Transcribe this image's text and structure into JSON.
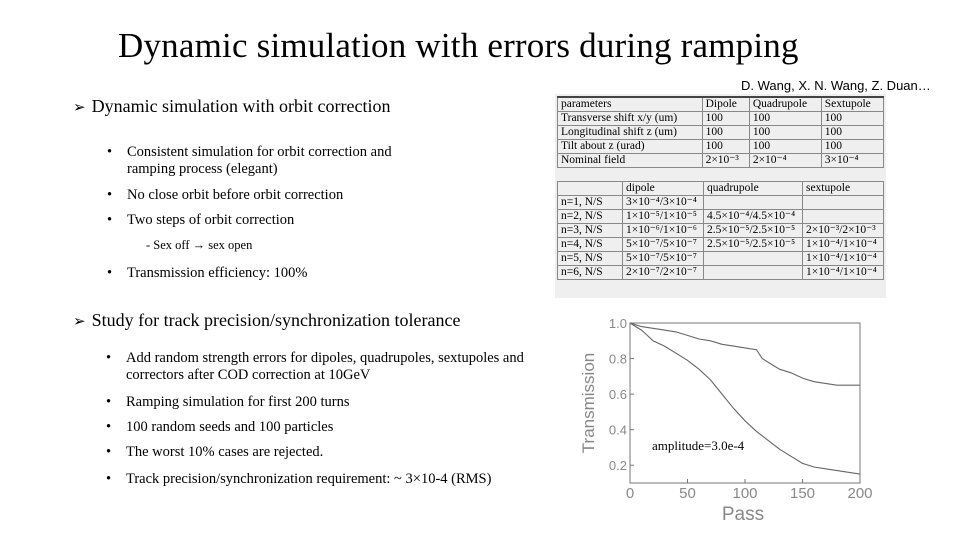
{
  "title": "Dynamic simulation with errors during ramping",
  "authors": "D. Wang, X. N. Wang, Z. Duan…",
  "section1": {
    "heading": "Dynamic simulation with orbit correction",
    "bullets": [
      "Consistent simulation for orbit correction and ramping process (elegant)",
      "No close orbit before orbit correction",
      "Two steps of orbit correction",
      "Transmission efficiency: 100%"
    ],
    "subitem": "- Sex off → sex open"
  },
  "section2": {
    "heading": "Study for track precision/synchronization tolerance",
    "bullets": [
      "Add random strength errors for dipoles, quadrupoles, sextupoles and correctors after COD correction at 10GeV",
      "Ramping simulation for first 200 turns",
      "100 random seeds and 100 particles",
      "The worst 10% cases are rejected.",
      "Track precision/synchronization requirement: ~ 3×10-4 (RMS)"
    ]
  },
  "table1": {
    "header": [
      "parameters",
      "Dipole",
      "Quadrupole",
      "Sextupole"
    ],
    "rows": [
      [
        "Transverse shift x/y (um)",
        "100",
        "100",
        "100"
      ],
      [
        "Longitudinal shift z (um)",
        "100",
        "100",
        "100"
      ],
      [
        "Tilt about z (urad)",
        "100",
        "100",
        "100"
      ],
      [
        "Nominal field",
        "2×10⁻³",
        "2×10⁻⁴",
        "3×10⁻⁴"
      ]
    ]
  },
  "table2": {
    "header": [
      "",
      "dipole",
      "quadrupole",
      "sextupole"
    ],
    "rows": [
      [
        "n=1, N/S",
        "3×10⁻⁴/3×10⁻⁴",
        "",
        ""
      ],
      [
        "n=2, N/S",
        "1×10⁻⁵/1×10⁻⁵",
        "4.5×10⁻⁴/4.5×10⁻⁴",
        ""
      ],
      [
        "n=3, N/S",
        "1×10⁻⁶/1×10⁻⁶",
        "2.5×10⁻⁵/2.5×10⁻⁵",
        "2×10⁻³/2×10⁻³"
      ],
      [
        "n=4, N/S",
        "5×10⁻⁷/5×10⁻⁷",
        "2.5×10⁻⁵/2.5×10⁻⁵",
        "1×10⁻⁴/1×10⁻⁴"
      ],
      [
        "n=5, N/S",
        "5×10⁻⁷/5×10⁻⁷",
        "",
        "1×10⁻⁴/1×10⁻⁴"
      ],
      [
        "n=6, N/S",
        "2×10⁻⁷/2×10⁻⁷",
        "",
        "1×10⁻⁴/1×10⁻⁴"
      ]
    ]
  },
  "chart_data": {
    "type": "line",
    "title": "",
    "xlabel": "Pass",
    "ylabel": "Transmission",
    "xlim": [
      0,
      200
    ],
    "ylim": [
      0.1,
      1.0
    ],
    "xticks": [
      "0",
      "50",
      "100",
      "150",
      "200"
    ],
    "yticks": [
      "1.0",
      "0.8",
      "0.6",
      "0.4",
      "0.2"
    ],
    "annotation": "amplitude=3.0e-4",
    "series": [
      {
        "x": [
          0,
          5,
          10,
          20,
          30,
          40,
          50,
          60,
          70,
          80,
          90,
          100,
          110,
          115,
          120,
          130,
          140,
          150,
          160,
          170,
          180,
          190,
          200
        ],
        "y": [
          1.0,
          0.99,
          0.98,
          0.97,
          0.96,
          0.95,
          0.93,
          0.91,
          0.9,
          0.88,
          0.87,
          0.86,
          0.85,
          0.8,
          0.78,
          0.74,
          0.72,
          0.69,
          0.67,
          0.66,
          0.65,
          0.65,
          0.65
        ]
      },
      {
        "x": [
          0,
          5,
          10,
          15,
          20,
          30,
          40,
          50,
          60,
          70,
          80,
          90,
          100,
          110,
          120,
          130,
          140,
          150,
          160,
          170,
          180,
          190,
          200
        ],
        "y": [
          1.0,
          0.98,
          0.96,
          0.93,
          0.9,
          0.87,
          0.83,
          0.79,
          0.74,
          0.68,
          0.6,
          0.52,
          0.45,
          0.39,
          0.34,
          0.29,
          0.25,
          0.21,
          0.19,
          0.18,
          0.17,
          0.16,
          0.15
        ]
      }
    ]
  }
}
